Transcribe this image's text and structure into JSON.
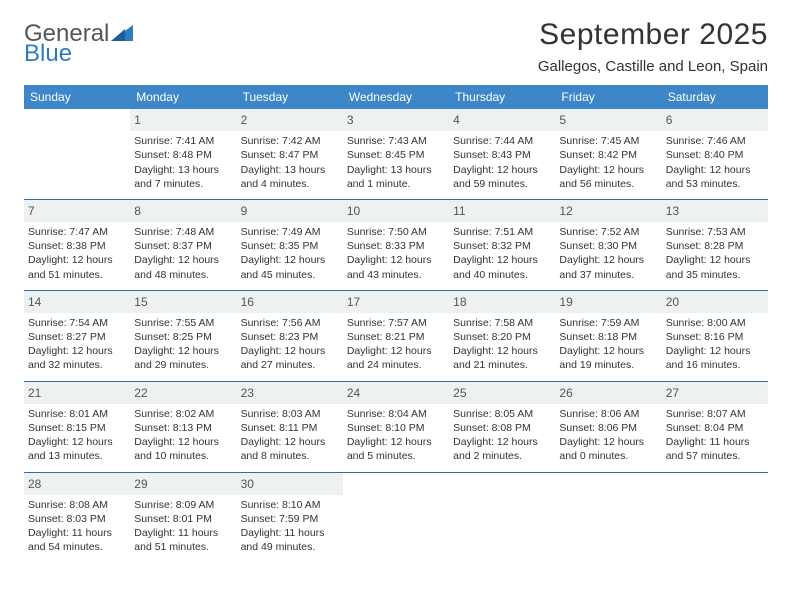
{
  "logo": {
    "word1": "General",
    "word2": "Blue"
  },
  "title": "September 2025",
  "location": "Gallegos, Castille and Leon, Spain",
  "colors": {
    "header_bg": "#3d87c9",
    "header_text": "#ffffff",
    "daynum_bg": "#eef1f2",
    "week_border": "#2f6ea8",
    "logo_blue": "#2f7bbf",
    "body_text": "#333333"
  },
  "day_headers": [
    "Sunday",
    "Monday",
    "Tuesday",
    "Wednesday",
    "Thursday",
    "Friday",
    "Saturday"
  ],
  "labels": {
    "sunrise": "Sunrise:",
    "sunset": "Sunset:",
    "daylight": "Daylight:"
  },
  "weeks": [
    [
      {
        "n": "",
        "empty": true
      },
      {
        "n": "1",
        "sunrise": "7:41 AM",
        "sunset": "8:48 PM",
        "daylight1": "13 hours",
        "daylight2": "and 7 minutes."
      },
      {
        "n": "2",
        "sunrise": "7:42 AM",
        "sunset": "8:47 PM",
        "daylight1": "13 hours",
        "daylight2": "and 4 minutes."
      },
      {
        "n": "3",
        "sunrise": "7:43 AM",
        "sunset": "8:45 PM",
        "daylight1": "13 hours",
        "daylight2": "and 1 minute."
      },
      {
        "n": "4",
        "sunrise": "7:44 AM",
        "sunset": "8:43 PM",
        "daylight1": "12 hours",
        "daylight2": "and 59 minutes."
      },
      {
        "n": "5",
        "sunrise": "7:45 AM",
        "sunset": "8:42 PM",
        "daylight1": "12 hours",
        "daylight2": "and 56 minutes."
      },
      {
        "n": "6",
        "sunrise": "7:46 AM",
        "sunset": "8:40 PM",
        "daylight1": "12 hours",
        "daylight2": "and 53 minutes."
      }
    ],
    [
      {
        "n": "7",
        "sunrise": "7:47 AM",
        "sunset": "8:38 PM",
        "daylight1": "12 hours",
        "daylight2": "and 51 minutes."
      },
      {
        "n": "8",
        "sunrise": "7:48 AM",
        "sunset": "8:37 PM",
        "daylight1": "12 hours",
        "daylight2": "and 48 minutes."
      },
      {
        "n": "9",
        "sunrise": "7:49 AM",
        "sunset": "8:35 PM",
        "daylight1": "12 hours",
        "daylight2": "and 45 minutes."
      },
      {
        "n": "10",
        "sunrise": "7:50 AM",
        "sunset": "8:33 PM",
        "daylight1": "12 hours",
        "daylight2": "and 43 minutes."
      },
      {
        "n": "11",
        "sunrise": "7:51 AM",
        "sunset": "8:32 PM",
        "daylight1": "12 hours",
        "daylight2": "and 40 minutes."
      },
      {
        "n": "12",
        "sunrise": "7:52 AM",
        "sunset": "8:30 PM",
        "daylight1": "12 hours",
        "daylight2": "and 37 minutes."
      },
      {
        "n": "13",
        "sunrise": "7:53 AM",
        "sunset": "8:28 PM",
        "daylight1": "12 hours",
        "daylight2": "and 35 minutes."
      }
    ],
    [
      {
        "n": "14",
        "sunrise": "7:54 AM",
        "sunset": "8:27 PM",
        "daylight1": "12 hours",
        "daylight2": "and 32 minutes."
      },
      {
        "n": "15",
        "sunrise": "7:55 AM",
        "sunset": "8:25 PM",
        "daylight1": "12 hours",
        "daylight2": "and 29 minutes."
      },
      {
        "n": "16",
        "sunrise": "7:56 AM",
        "sunset": "8:23 PM",
        "daylight1": "12 hours",
        "daylight2": "and 27 minutes."
      },
      {
        "n": "17",
        "sunrise": "7:57 AM",
        "sunset": "8:21 PM",
        "daylight1": "12 hours",
        "daylight2": "and 24 minutes."
      },
      {
        "n": "18",
        "sunrise": "7:58 AM",
        "sunset": "8:20 PM",
        "daylight1": "12 hours",
        "daylight2": "and 21 minutes."
      },
      {
        "n": "19",
        "sunrise": "7:59 AM",
        "sunset": "8:18 PM",
        "daylight1": "12 hours",
        "daylight2": "and 19 minutes."
      },
      {
        "n": "20",
        "sunrise": "8:00 AM",
        "sunset": "8:16 PM",
        "daylight1": "12 hours",
        "daylight2": "and 16 minutes."
      }
    ],
    [
      {
        "n": "21",
        "sunrise": "8:01 AM",
        "sunset": "8:15 PM",
        "daylight1": "12 hours",
        "daylight2": "and 13 minutes."
      },
      {
        "n": "22",
        "sunrise": "8:02 AM",
        "sunset": "8:13 PM",
        "daylight1": "12 hours",
        "daylight2": "and 10 minutes."
      },
      {
        "n": "23",
        "sunrise": "8:03 AM",
        "sunset": "8:11 PM",
        "daylight1": "12 hours",
        "daylight2": "and 8 minutes."
      },
      {
        "n": "24",
        "sunrise": "8:04 AM",
        "sunset": "8:10 PM",
        "daylight1": "12 hours",
        "daylight2": "and 5 minutes."
      },
      {
        "n": "25",
        "sunrise": "8:05 AM",
        "sunset": "8:08 PM",
        "daylight1": "12 hours",
        "daylight2": "and 2 minutes."
      },
      {
        "n": "26",
        "sunrise": "8:06 AM",
        "sunset": "8:06 PM",
        "daylight1": "12 hours",
        "daylight2": "and 0 minutes."
      },
      {
        "n": "27",
        "sunrise": "8:07 AM",
        "sunset": "8:04 PM",
        "daylight1": "11 hours",
        "daylight2": "and 57 minutes."
      }
    ],
    [
      {
        "n": "28",
        "sunrise": "8:08 AM",
        "sunset": "8:03 PM",
        "daylight1": "11 hours",
        "daylight2": "and 54 minutes."
      },
      {
        "n": "29",
        "sunrise": "8:09 AM",
        "sunset": "8:01 PM",
        "daylight1": "11 hours",
        "daylight2": "and 51 minutes."
      },
      {
        "n": "30",
        "sunrise": "8:10 AM",
        "sunset": "7:59 PM",
        "daylight1": "11 hours",
        "daylight2": "and 49 minutes."
      },
      {
        "n": "",
        "empty": true
      },
      {
        "n": "",
        "empty": true
      },
      {
        "n": "",
        "empty": true
      },
      {
        "n": "",
        "empty": true
      }
    ]
  ]
}
